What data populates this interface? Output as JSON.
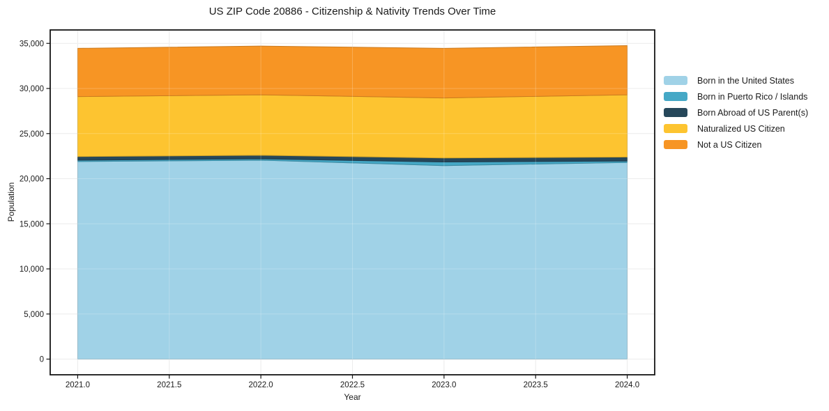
{
  "figure": {
    "title": "US ZIP Code 20886 - Citizenship & Nativity Trends Over Time",
    "xlabel": "Year",
    "ylabel": "Population"
  },
  "chart_data": {
    "type": "area",
    "stacked": true,
    "title": "US ZIP Code 20886 - Citizenship & Nativity Trends Over Time",
    "xlabel": "Year",
    "ylabel": "Population",
    "x": [
      2021,
      2022,
      2023,
      2024
    ],
    "series": [
      {
        "name": "Born in the United States",
        "color": "#a0d2e7",
        "values": [
          21900,
          22050,
          21450,
          21800
        ]
      },
      {
        "name": "Born in Puerto Rico / Islands",
        "color": "#45a8c6",
        "values": [
          150,
          150,
          400,
          150
        ]
      },
      {
        "name": "Born Abroad of US Parent(s)",
        "color": "#26475a",
        "values": [
          400,
          400,
          450,
          450
        ]
      },
      {
        "name": "Naturalized US Citizen",
        "color": "#fdc430",
        "values": [
          6650,
          6700,
          6650,
          6900
        ]
      },
      {
        "name": "Not a US Citizen",
        "color": "#f79524",
        "values": [
          5350,
          5400,
          5500,
          5450
        ]
      }
    ],
    "totals_by_year": [
      34450,
      34700,
      34450,
      34750
    ],
    "xticks": {
      "values": [
        2021.0,
        2021.5,
        2022.0,
        2022.5,
        2023.0,
        2023.5,
        2024.0
      ],
      "labels": [
        "2021.0",
        "2021.5",
        "2022.0",
        "2022.5",
        "2023.0",
        "2023.5",
        "2024.0"
      ]
    },
    "yticks": {
      "values": [
        0,
        5000,
        10000,
        15000,
        20000,
        25000,
        30000,
        35000
      ],
      "labels": [
        "0",
        "5,000",
        "10,000",
        "15,000",
        "20,000",
        "25,000",
        "30,000",
        "35,000"
      ]
    },
    "xlim": [
      2020.85,
      2024.15
    ],
    "ylim": [
      -1737.5,
      36487.5
    ],
    "grid": true,
    "legend_position": "outside-right"
  },
  "colors": {
    "background": "#ffffff",
    "grid": "#e7e7e7",
    "spine": "#141414",
    "tick_text": "#1a1a1a"
  }
}
